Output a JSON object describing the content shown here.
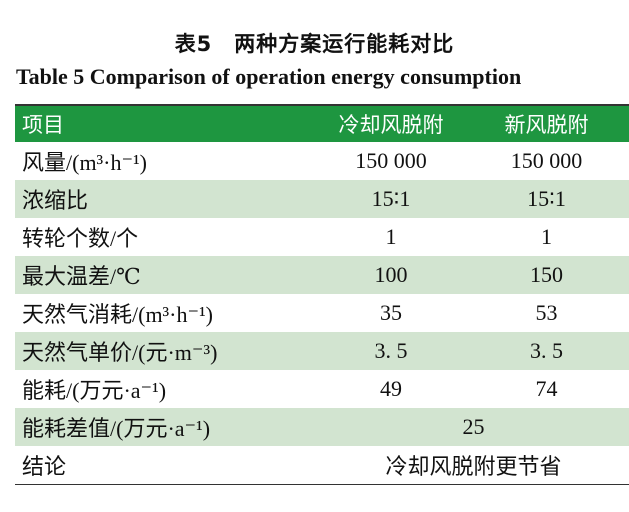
{
  "title_cn": "表5　两种方案运行能耗对比",
  "title_en": "Table 5    Comparison of operation energy consumption",
  "headers": [
    "项目",
    "冷却风脱附",
    "新风脱附"
  ],
  "rows": [
    {
      "item": "风量/(m³·h⁻¹)",
      "a": "150 000",
      "b": "150 000"
    },
    {
      "item": "浓缩比",
      "a": "15∶1",
      "b": "15∶1"
    },
    {
      "item": "转轮个数/个",
      "a": "1",
      "b": "1"
    },
    {
      "item": "最大温差/℃",
      "a": "100",
      "b": "150"
    },
    {
      "item": "天然气消耗/(m³·h⁻¹)",
      "a": "35",
      "b": "53"
    },
    {
      "item": "天然气单价/(元·m⁻³)",
      "a": "3. 5",
      "b": "3. 5"
    },
    {
      "item": "能耗/(万元·a⁻¹)",
      "a": "49",
      "b": "74"
    }
  ],
  "diff": {
    "item": "能耗差值/(万元·a⁻¹)",
    "value": "25"
  },
  "conclusion": {
    "item": "结论",
    "value": "冷却风脱附更节省"
  }
}
